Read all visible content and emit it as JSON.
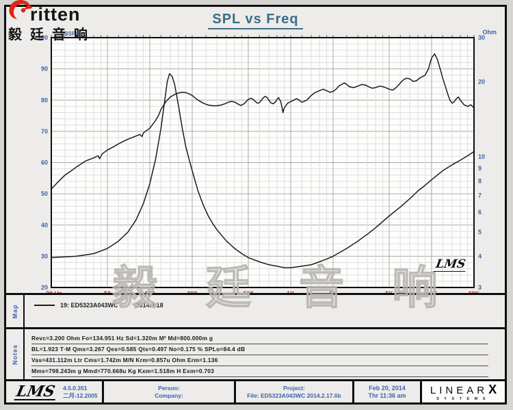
{
  "logo": {
    "brand": "ritten",
    "company_cn": "毅廷音响",
    "swoosh_color": "#e02417"
  },
  "title": "SPL vs Freq",
  "watermark_text": "毅 廷 音 响",
  "plot_logo": "LMS",
  "chart_data": {
    "type": "line",
    "title": "SPL vs Freq",
    "x_scale": "log",
    "x_range": [
      20,
      20000
    ],
    "x_major_ticks": [
      {
        "label": "20 Hz",
        "f": 20
      },
      {
        "label": "50",
        "f": 50
      },
      {
        "label": "100",
        "f": 100
      },
      {
        "label": "200",
        "f": 200
      },
      {
        "label": "500",
        "f": 500
      },
      {
        "label": "1K",
        "f": 1000
      },
      {
        "label": "2K",
        "f": 2000
      },
      {
        "label": "5K",
        "f": 5000
      },
      {
        "label": "10K",
        "f": 10000
      },
      {
        "label": "20K",
        "f": 20000
      }
    ],
    "x_minor_ticks": [
      25,
      30,
      35,
      40,
      45,
      60,
      70,
      80,
      90,
      120,
      140,
      160,
      180,
      250,
      300,
      350,
      400,
      450,
      600,
      700,
      800,
      900,
      1200,
      1400,
      1600,
      1800,
      2500,
      3000,
      3500,
      4000,
      4500,
      6000,
      7000,
      8000,
      9000,
      12000,
      14000,
      16000,
      18000
    ],
    "y_left": {
      "label": "dBSPL",
      "range": [
        20,
        100
      ],
      "major_step": 10,
      "minor_step": 2,
      "ticks": [
        20,
        30,
        40,
        50,
        60,
        70,
        80,
        90,
        100
      ]
    },
    "y_right": {
      "label": "Ohm",
      "range": [
        3,
        30
      ],
      "scale": "log",
      "ticks": [
        3,
        4,
        5,
        6,
        7,
        8,
        9,
        10,
        20,
        30
      ]
    },
    "grid": true,
    "legend_position": "map-strip",
    "series": [
      {
        "name": "SPL (dB re left axis)",
        "axis": "left",
        "points": [
          [
            20,
            51.5
          ],
          [
            22,
            53.5
          ],
          [
            25,
            56
          ],
          [
            28,
            57.5
          ],
          [
            30,
            58.5
          ],
          [
            35,
            60.5
          ],
          [
            40,
            61.5
          ],
          [
            43,
            62.2
          ],
          [
            44,
            61.2
          ],
          [
            46,
            62.8
          ],
          [
            50,
            64
          ],
          [
            55,
            65
          ],
          [
            60,
            66
          ],
          [
            70,
            67.5
          ],
          [
            80,
            68.5
          ],
          [
            85,
            69
          ],
          [
            88,
            68.3
          ],
          [
            90,
            69.5
          ],
          [
            100,
            71
          ],
          [
            110,
            73.5
          ],
          [
            115,
            75
          ],
          [
            120,
            77
          ],
          [
            130,
            79.5
          ],
          [
            140,
            81
          ],
          [
            150,
            81.8
          ],
          [
            160,
            82.3
          ],
          [
            170,
            82.5
          ],
          [
            180,
            82.4
          ],
          [
            190,
            82
          ],
          [
            200,
            81.5
          ],
          [
            220,
            80
          ],
          [
            240,
            79
          ],
          [
            260,
            78.4
          ],
          [
            280,
            78.2
          ],
          [
            300,
            78.2
          ],
          [
            320,
            78.4
          ],
          [
            340,
            78.8
          ],
          [
            360,
            79.3
          ],
          [
            380,
            79.6
          ],
          [
            400,
            79.4
          ],
          [
            420,
            78.8
          ],
          [
            440,
            78.3
          ],
          [
            460,
            78.6
          ],
          [
            480,
            79.4
          ],
          [
            500,
            80.2
          ],
          [
            520,
            80.6
          ],
          [
            540,
            80.3
          ],
          [
            560,
            79.6
          ],
          [
            580,
            79
          ],
          [
            600,
            79.2
          ],
          [
            620,
            80
          ],
          [
            640,
            80.8
          ],
          [
            660,
            81.2
          ],
          [
            680,
            80.8
          ],
          [
            700,
            80
          ],
          [
            720,
            79.2
          ],
          [
            750,
            78.8
          ],
          [
            780,
            79.4
          ],
          [
            800,
            80.3
          ],
          [
            820,
            80.8
          ],
          [
            850,
            79.5
          ],
          [
            870,
            77.5
          ],
          [
            880,
            76
          ],
          [
            900,
            77.5
          ],
          [
            950,
            79
          ],
          [
            1000,
            79.5
          ],
          [
            1050,
            80
          ],
          [
            1100,
            80.5
          ],
          [
            1150,
            80
          ],
          [
            1200,
            79.3
          ],
          [
            1300,
            80
          ],
          [
            1400,
            81.5
          ],
          [
            1500,
            82.5
          ],
          [
            1600,
            83
          ],
          [
            1700,
            83.5
          ],
          [
            1800,
            83
          ],
          [
            1900,
            82.5
          ],
          [
            2000,
            82.8
          ],
          [
            2100,
            83.5
          ],
          [
            2200,
            84.5
          ],
          [
            2300,
            85
          ],
          [
            2400,
            85.5
          ],
          [
            2500,
            85
          ],
          [
            2600,
            84.3
          ],
          [
            2800,
            84
          ],
          [
            3000,
            84.5
          ],
          [
            3200,
            85
          ],
          [
            3400,
            84.8
          ],
          [
            3600,
            84.2
          ],
          [
            3800,
            83.8
          ],
          [
            4000,
            84
          ],
          [
            4300,
            84.5
          ],
          [
            4600,
            84.2
          ],
          [
            5000,
            83.5
          ],
          [
            5300,
            83.2
          ],
          [
            5600,
            84
          ],
          [
            6000,
            85.5
          ],
          [
            6300,
            86.5
          ],
          [
            6600,
            87
          ],
          [
            7000,
            86.8
          ],
          [
            7400,
            86
          ],
          [
            7800,
            86.2
          ],
          [
            8200,
            87
          ],
          [
            8600,
            87.5
          ],
          [
            9000,
            88
          ],
          [
            9500,
            90
          ],
          [
            10000,
            93.5
          ],
          [
            10500,
            94.8
          ],
          [
            11000,
            93
          ],
          [
            11500,
            90
          ],
          [
            12000,
            87
          ],
          [
            12500,
            84.5
          ],
          [
            13000,
            82
          ],
          [
            13500,
            80
          ],
          [
            14000,
            79
          ],
          [
            14500,
            79.5
          ],
          [
            15000,
            80.5
          ],
          [
            15500,
            81
          ],
          [
            16000,
            80
          ],
          [
            17000,
            78.5
          ],
          [
            18000,
            78
          ],
          [
            19000,
            78.5
          ],
          [
            20000,
            77.5
          ]
        ]
      },
      {
        "name": "Impedance (Ohm re right axis)",
        "axis": "right",
        "points": [
          [
            20,
            3.95
          ],
          [
            25,
            3.98
          ],
          [
            30,
            4.0
          ],
          [
            35,
            4.05
          ],
          [
            40,
            4.1
          ],
          [
            45,
            4.2
          ],
          [
            50,
            4.3
          ],
          [
            55,
            4.45
          ],
          [
            60,
            4.6
          ],
          [
            70,
            5.0
          ],
          [
            80,
            5.6
          ],
          [
            90,
            6.5
          ],
          [
            100,
            7.8
          ],
          [
            110,
            9.8
          ],
          [
            120,
            13
          ],
          [
            128,
            17
          ],
          [
            133,
            20
          ],
          [
            138,
            21.5
          ],
          [
            144,
            21
          ],
          [
            150,
            19.5
          ],
          [
            160,
            16
          ],
          [
            170,
            13
          ],
          [
            180,
            11
          ],
          [
            190,
            9.8
          ],
          [
            200,
            8.8
          ],
          [
            220,
            7.3
          ],
          [
            240,
            6.4
          ],
          [
            260,
            5.8
          ],
          [
            280,
            5.4
          ],
          [
            300,
            5.1
          ],
          [
            350,
            4.6
          ],
          [
            400,
            4.3
          ],
          [
            450,
            4.1
          ],
          [
            500,
            3.95
          ],
          [
            600,
            3.8
          ],
          [
            700,
            3.7
          ],
          [
            800,
            3.65
          ],
          [
            900,
            3.6
          ],
          [
            1000,
            3.6
          ],
          [
            1200,
            3.65
          ],
          [
            1400,
            3.7
          ],
          [
            1600,
            3.8
          ],
          [
            1800,
            3.9
          ],
          [
            2000,
            4.0
          ],
          [
            2500,
            4.3
          ],
          [
            3000,
            4.6
          ],
          [
            3500,
            4.9
          ],
          [
            4000,
            5.2
          ],
          [
            5000,
            5.8
          ],
          [
            6000,
            6.3
          ],
          [
            7000,
            6.8
          ],
          [
            8000,
            7.3
          ],
          [
            9000,
            7.7
          ],
          [
            10000,
            8.1
          ],
          [
            12000,
            8.8
          ],
          [
            14000,
            9.3
          ],
          [
            16000,
            9.7
          ],
          [
            18000,
            10.1
          ],
          [
            20000,
            10.5
          ]
        ]
      }
    ],
    "colors": {
      "curve": "#1c1c1c",
      "grid_minor": "#dddddd",
      "grid_major": "#a9a9a9",
      "axis_labels_y": "#3f62a8",
      "axis_labels_x": "#9e3344",
      "frame": "#0d0d0d",
      "plot_bg": "#fdfdfc"
    }
  },
  "map": {
    "section_label": "Map",
    "legend": {
      "name": "19: ED5323A043WC",
      "date": "2014.2.18"
    }
  },
  "notes": {
    "section_label": "Notes",
    "lines": [
      "Revc=3.200 Ohm  Fo=134.951 Hz  Sd=1.320m M²  Md=800.000m g",
      "BL=1.923 T·M  Qms=3.267  Qes=0.585  Qts=0.497  No=0.175 %  SPLo=84.4 dB",
      "Vas=431.112m Ltr  Cms=1.742m M/N  Krm=0.857u Ohm  Erm=1.136",
      "Mms=798.243m g  Mmd=770.668u Kg  Kxm=1.518m H  Exm=0.703"
    ]
  },
  "footer": {
    "lms_logo": "LMS",
    "version": "4.5.0.351",
    "version_date": "二月-12.2005",
    "person_label": "Person:",
    "company_label": "Company:",
    "project_label": "Project:",
    "file_label": "File: ED5323A043WC  2014.2.17.lib",
    "date": "Feb 20, 2014",
    "time": "Thr 11:36 am",
    "brand_linear": "LINEAR",
    "brand_x": "X",
    "brand_systems": "SYSTEMS"
  }
}
